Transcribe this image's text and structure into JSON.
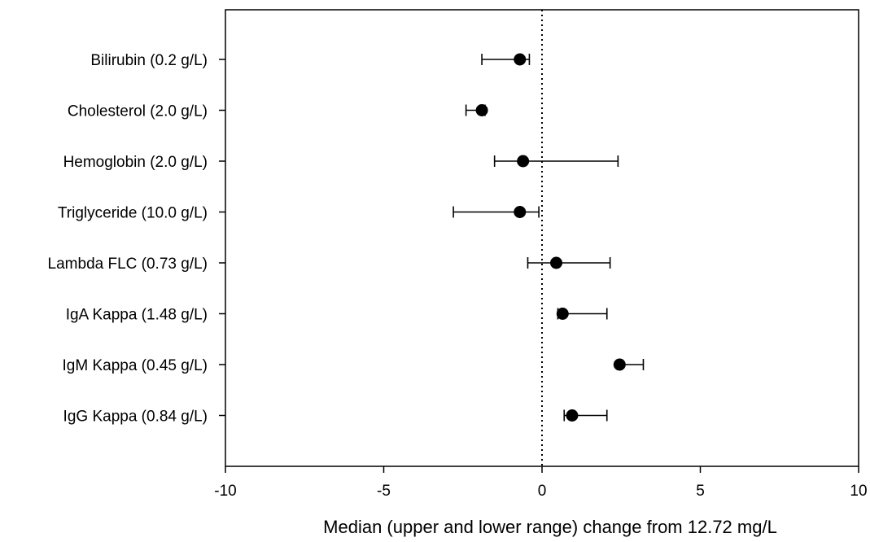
{
  "chart_data": {
    "type": "forest",
    "xlabel": "Median (upper and lower range) change from 12.72 mg/L",
    "xlim": [
      -10,
      10
    ],
    "xticks": [
      -10,
      -5,
      0,
      5,
      10
    ],
    "xtick_labels": [
      "-10",
      "-5",
      "0",
      "5",
      "10"
    ],
    "reference_line": 0,
    "grid": false,
    "categories": [
      "Bilirubin (0.2 g/L)",
      "Cholesterol (2.0 g/L)",
      "Hemoglobin (2.0 g/L)",
      "Triglyceride (10.0 g/L)",
      "Lambda FLC (0.73 g/L)",
      "IgA Kappa (1.48 g/L)",
      "IgM Kappa (0.45 g/L)",
      "IgG Kappa (0.84 g/L)"
    ],
    "median": [
      -0.7,
      -1.9,
      -0.6,
      -0.7,
      0.45,
      0.65,
      2.45,
      0.95
    ],
    "lower": [
      -1.9,
      -2.4,
      -1.5,
      -2.8,
      -0.45,
      0.5,
      2.4,
      0.7
    ],
    "upper": [
      -0.4,
      -1.8,
      2.4,
      -0.1,
      2.15,
      2.05,
      3.2,
      2.05
    ]
  }
}
